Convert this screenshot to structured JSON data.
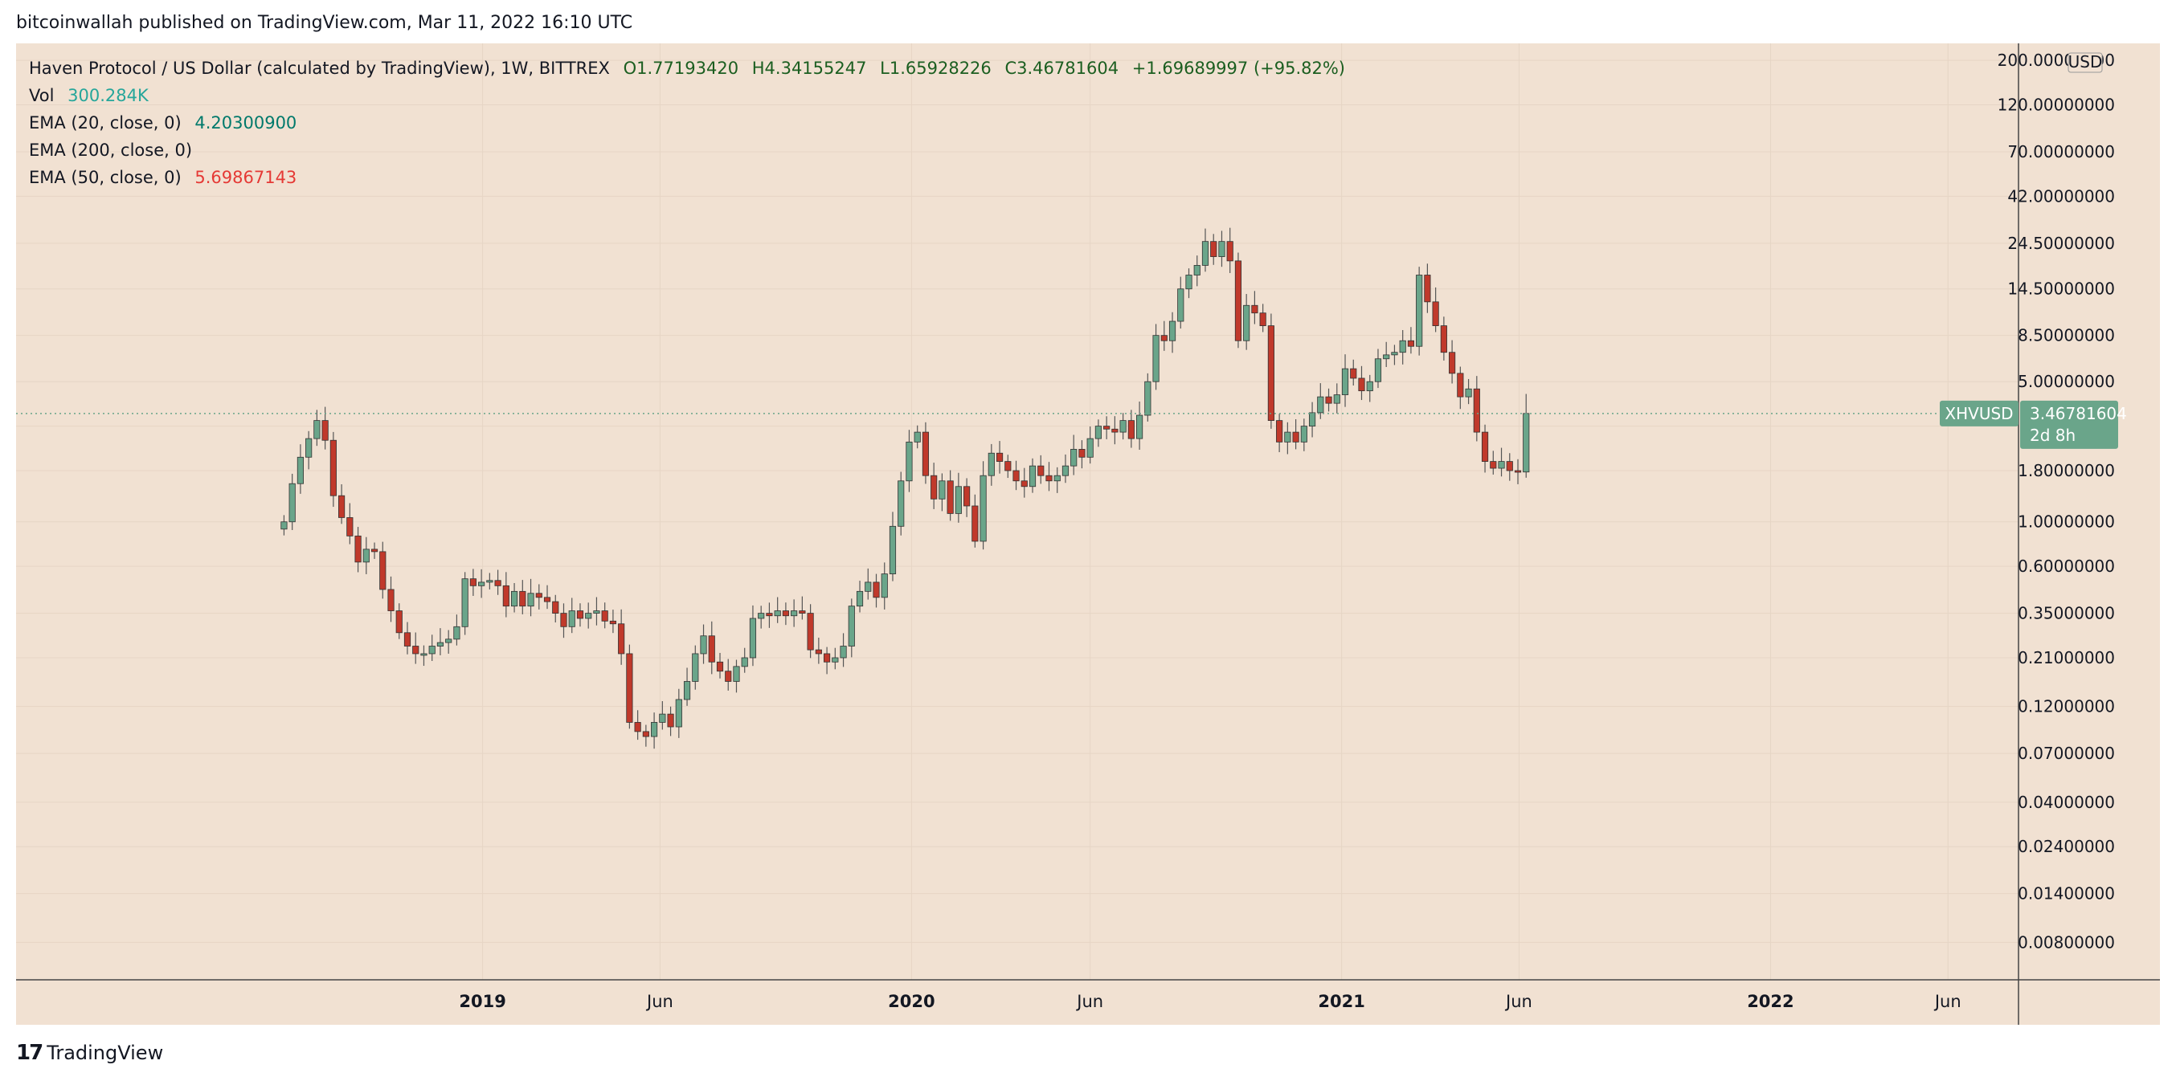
{
  "header": {
    "published_line": "bitcoinwallah published on TradingView.com, Mar 11, 2022 16:10 UTC"
  },
  "legend": {
    "title": "Haven Protocol / US Dollar (calculated by TradingView), 1W, BITTREX",
    "open": "O1.77193420",
    "high": "H4.34155247",
    "low": "L1.65928226",
    "close": "C3.46781604",
    "change": "+1.69689997 (+95.82%)",
    "vol_label": "Vol",
    "vol_value": "300.284K",
    "ema20_label": "EMA (20, close, 0)",
    "ema20_value": "4.20300900",
    "ema200_label": "EMA (200, close, 0)",
    "ema50_label": "EMA (50, close, 0)",
    "ema50_value": "5.69867143"
  },
  "price_tag": {
    "symbol": "XHVUSD",
    "price": "3.46781604",
    "countdown": "2d 8h"
  },
  "footer": {
    "brand": "TradingView"
  },
  "colors": {
    "background": "#f1e1d2",
    "up": "#6aa58a",
    "down": "#c0392b",
    "wick": "#555555",
    "ema20": "#00796b",
    "ema50": "#e53935",
    "price_tag": "#6aa58a"
  },
  "chart_data": {
    "type": "candlestick",
    "symbol": "XHVUSD",
    "interval": "1W",
    "scale": "log",
    "ylim": [
      0.0055,
      230
    ],
    "yunit": "USD",
    "ytick_values": [
      200,
      120,
      70,
      42,
      24.5,
      14.5,
      8.5,
      5,
      3,
      1.8,
      1,
      0.6,
      0.35,
      0.21,
      0.12,
      0.07,
      0.04,
      0.024,
      0.014,
      0.008
    ],
    "ytick_labels": [
      "200.00000000",
      "120.00000000",
      "70.00000000",
      "42.00000000",
      "24.50000000",
      "14.50000000",
      "8.50000000",
      "5.00000000",
      "3.00000000",
      "1.80000000",
      "1.00000000",
      "0.60000000",
      "0.35000000",
      "0.21000000",
      "0.12000000",
      "0.07000000",
      "0.04000000",
      "0.02400000",
      "0.01400000",
      "0.00800000"
    ],
    "ytick_visible": [
      true,
      true,
      true,
      true,
      true,
      true,
      true,
      true,
      false,
      true,
      true,
      true,
      true,
      true,
      true,
      true,
      true,
      true,
      true,
      true
    ],
    "xrange": [
      "2017-11-30",
      "2022-07-31"
    ],
    "xticks": [
      {
        "label": "2019",
        "date": "2019-01-01",
        "year": true
      },
      {
        "label": "Jun",
        "date": "2019-06-01",
        "year": false
      },
      {
        "label": "2020",
        "date": "2020-01-01",
        "year": true
      },
      {
        "label": "Jun",
        "date": "2020-06-01",
        "year": false
      },
      {
        "label": "2021",
        "date": "2021-01-01",
        "year": true
      },
      {
        "label": "Jun",
        "date": "2021-06-01",
        "year": false
      },
      {
        "label": "2022",
        "date": "2022-01-01",
        "year": true
      },
      {
        "label": "Jun",
        "date": "2022-06-01",
        "year": false
      }
    ],
    "first_candle_date": "2018-07-16",
    "last_candle_date": "2022-03-07",
    "closes": [
      1.0,
      1.55,
      2.1,
      2.6,
      3.2,
      2.55,
      1.35,
      1.05,
      0.85,
      0.63,
      0.73,
      0.71,
      0.46,
      0.36,
      0.28,
      0.24,
      0.22,
      0.22,
      0.24,
      0.25,
      0.26,
      0.3,
      0.52,
      0.48,
      0.5,
      0.51,
      0.48,
      0.38,
      0.45,
      0.38,
      0.44,
      0.42,
      0.4,
      0.35,
      0.3,
      0.36,
      0.33,
      0.35,
      0.36,
      0.32,
      0.31,
      0.22,
      0.1,
      0.09,
      0.085,
      0.1,
      0.11,
      0.095,
      0.13,
      0.16,
      0.22,
      0.27,
      0.2,
      0.18,
      0.16,
      0.19,
      0.21,
      0.33,
      0.35,
      0.34,
      0.36,
      0.34,
      0.36,
      0.35,
      0.23,
      0.22,
      0.2,
      0.21,
      0.24,
      0.38,
      0.45,
      0.5,
      0.42,
      0.55,
      0.95,
      1.6,
      2.5,
      2.8,
      1.7,
      1.3,
      1.6,
      1.1,
      1.5,
      1.2,
      0.8,
      1.7,
      2.2,
      2.0,
      1.8,
      1.6,
      1.5,
      1.9,
      1.7,
      1.6,
      1.7,
      1.9,
      2.3,
      2.1,
      2.6,
      3.0,
      2.9,
      2.8,
      3.2,
      2.6,
      3.4,
      5.0,
      8.5,
      8.0,
      10.0,
      14.5,
      17.0,
      19.0,
      25.0,
      21.0,
      25.0,
      20.0,
      8.0,
      12.0,
      11.0,
      9.5,
      3.2,
      2.5,
      2.8,
      2.5,
      3.0,
      3.5,
      4.2,
      3.9,
      4.3,
      5.8,
      5.2,
      4.5,
      5.0,
      6.5,
      6.8,
      7.0,
      8.0,
      7.5,
      17.0,
      12.5,
      9.5,
      7.0,
      5.5,
      4.2,
      4.6,
      2.8,
      2.0,
      1.85,
      2.0,
      1.8,
      1.77,
      3.47
    ],
    "ohlc_note": "Weekly closes reconstructed from the chart; each candle opens at the previous close",
    "last_candle": {
      "open": 1.7719342,
      "high": 4.34155247,
      "low": 1.65928226,
      "close": 3.46781604
    },
    "ema20_last": 4.203009,
    "ema50_last": 5.69867143
  }
}
